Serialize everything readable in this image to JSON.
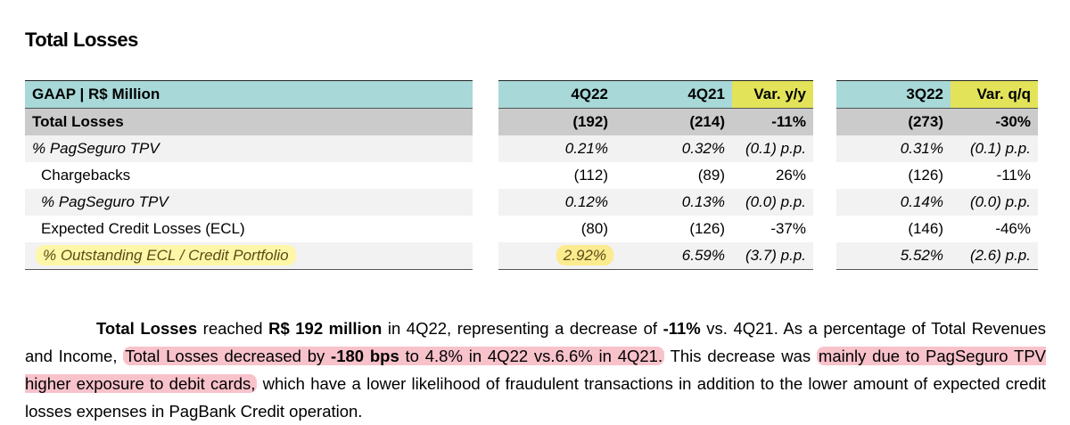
{
  "title": "Total Losses",
  "header": {
    "label": "GAAP | R$ Million",
    "c4q22": "4Q22",
    "c4q21": "4Q21",
    "var_yy": "Var. y/y",
    "c3q22": "3Q22",
    "var_qq": "Var. q/q"
  },
  "rows": [
    {
      "label": "Total Losses",
      "q4_22": "(192)",
      "q4_21": "(214)",
      "var_yy": "-11%",
      "q3_22": "(273)",
      "var_qq": "-30%"
    },
    {
      "label": "% PagSeguro TPV",
      "q4_22": "0.21%",
      "q4_21": "0.32%",
      "var_yy": "(0.1) p.p.",
      "q3_22": "0.31%",
      "var_qq": "(0.1) p.p."
    },
    {
      "label": "Chargebacks",
      "q4_22": "(112)",
      "q4_21": "(89)",
      "var_yy": "26%",
      "q3_22": "(126)",
      "var_qq": "-11%"
    },
    {
      "label": "% PagSeguro TPV",
      "q4_22": "0.12%",
      "q4_21": "0.13%",
      "var_yy": "(0.0) p.p.",
      "q3_22": "0.14%",
      "var_qq": "(0.0) p.p."
    },
    {
      "label": "Expected Credit Losses (ECL)",
      "q4_22": "(80)",
      "q4_21": "(126)",
      "var_yy": "-37%",
      "q3_22": "(146)",
      "var_qq": "-46%"
    },
    {
      "label": "% Outstanding ECL / Credit Portfolio",
      "q4_22": "2.92%",
      "q4_21": "6.59%",
      "var_yy": "(3.7) p.p.",
      "q3_22": "5.52%",
      "var_qq": "(2.6) p.p."
    }
  ],
  "paragraph": {
    "s1": "Total Losses",
    "s2": " reached ",
    "s3": "R$ 192 million",
    "s4": " in 4Q22, representing a decrease of ",
    "s5": "-11%",
    "s6": " vs. 4Q21. As a percentage of Total Revenues and Income, ",
    "s7": "Total Losses decreased by ",
    "s8": "-180 bps",
    "s9": " to 4.8% in 4Q22 vs.6.6% in 4Q21.",
    "s10": " This decrease was ",
    "s11": "mainly due to PagSeguro TPV higher exposure to debit cards,",
    "s12": " which have a lower likelihood of fraudulent transactions in addition to the lower amount of expected credit losses expenses in PagBank Credit operation."
  },
  "colors": {
    "header_teal": "#a8d8d8",
    "var_yellow": "#e3e35a",
    "highlight_yellow": "#ffe86e",
    "highlight_red": "#f0788c"
  }
}
